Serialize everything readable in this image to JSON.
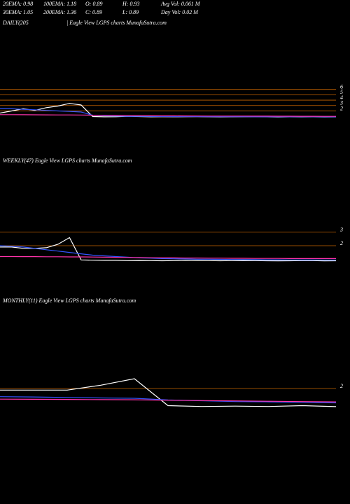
{
  "header": {
    "row1": [
      "20EMA: 0.98",
      "100EMA: 1.18",
      "O: 0.89",
      "H: 0.93",
      "Avg Vol: 0.061 M"
    ],
    "row2": [
      "30EMA: 1.05",
      "200EMA: 1.36",
      "C: 0.89",
      "L: 0.89",
      "Day Vol: 0.02 M"
    ]
  },
  "chart_data": [
    {
      "type": "line",
      "title": "DAILY(205",
      "subtitle": "| Eagle  View  LGPS charts MunafaSutra.com",
      "ylim": [
        0.5,
        7
      ],
      "yticks": [
        6,
        5,
        4,
        3,
        2
      ],
      "grid": true,
      "grid_color": "#c86400",
      "series": [
        {
          "color": "#ffffff",
          "values": [
            1.6,
            2.0,
            2.4,
            2.1,
            2.6,
            2.9,
            3.4,
            3.1,
            0.95,
            0.9,
            0.92,
            1.0,
            0.95,
            0.9,
            0.92,
            0.9,
            0.91,
            0.93,
            0.9,
            0.89,
            0.9,
            0.92,
            0.91,
            0.9,
            0.88,
            0.9,
            0.89,
            0.9,
            0.88,
            0.89
          ]
        },
        {
          "color": "#3355ff",
          "values": [
            2.4,
            2.4,
            2.3,
            2.2,
            2.1,
            2.0,
            1.9,
            1.8,
            1.2,
            1.1,
            1.05,
            1.0,
            1.0,
            0.98,
            0.97,
            0.96,
            0.95,
            0.95,
            0.94,
            0.94,
            0.93,
            0.93,
            0.92,
            0.92,
            0.92,
            0.91,
            0.91,
            0.91,
            0.9,
            0.9
          ]
        },
        {
          "color": "#ff33aa",
          "values": [
            1.3,
            1.3,
            1.29,
            1.28,
            1.27,
            1.26,
            1.25,
            1.24,
            1.2,
            1.17,
            1.15,
            1.13,
            1.12,
            1.1,
            1.09,
            1.08,
            1.07,
            1.06,
            1.05,
            1.05,
            1.04,
            1.04,
            1.03,
            1.03,
            1.02,
            1.02,
            1.01,
            1.01,
            1.0,
            1.0
          ]
        }
      ]
    },
    {
      "type": "line",
      "title": "WEEKLY(47) Eagle  View  LGPS charts MunafaSutra.com",
      "ylim": [
        0.5,
        3.6
      ],
      "yticks": [
        3,
        2
      ],
      "grid": true,
      "grid_color": "#c86400",
      "series": [
        {
          "color": "#ffffff",
          "values": [
            1.9,
            1.9,
            1.8,
            1.8,
            1.85,
            2.1,
            2.6,
            0.95,
            0.93,
            0.92,
            0.92,
            0.9,
            0.91,
            0.9,
            0.89,
            0.9,
            0.92,
            0.91,
            0.9,
            0.89,
            0.9,
            0.91,
            0.9,
            0.89,
            0.88,
            0.89,
            0.9,
            0.9,
            0.88,
            0.89
          ]
        },
        {
          "color": "#3355ff",
          "values": [
            2.0,
            1.95,
            1.9,
            1.8,
            1.7,
            1.6,
            1.5,
            1.4,
            1.3,
            1.25,
            1.2,
            1.15,
            1.1,
            1.08,
            1.05,
            1.03,
            1.02,
            1.0,
            1.0,
            0.99,
            0.98,
            0.97,
            0.97,
            0.96,
            0.96,
            0.95,
            0.95,
            0.95,
            0.94,
            0.94
          ]
        },
        {
          "color": "#ff33aa",
          "values": [
            1.2,
            1.2,
            1.19,
            1.19,
            1.18,
            1.18,
            1.17,
            1.17,
            1.16,
            1.15,
            1.14,
            1.13,
            1.12,
            1.11,
            1.1,
            1.1,
            1.09,
            1.09,
            1.08,
            1.08,
            1.07,
            1.07,
            1.06,
            1.06,
            1.06,
            1.05,
            1.05,
            1.05,
            1.05,
            1.05
          ]
        }
      ]
    },
    {
      "type": "line",
      "title": "MONTHLY(11) Eagle  View  LGPS charts MunafaSutra.com",
      "ylim": [
        0.5,
        3.5
      ],
      "yticks": [
        2
      ],
      "grid": true,
      "grid_color": "#c86400",
      "series": [
        {
          "color": "#ffffff",
          "values": [
            1.9,
            1.9,
            1.9,
            2.2,
            2.6,
            0.95,
            0.9,
            0.92,
            0.9,
            0.95,
            0.89
          ]
        },
        {
          "color": "#3355ff",
          "values": [
            1.5,
            1.48,
            1.45,
            1.42,
            1.4,
            1.3,
            1.25,
            1.2,
            1.18,
            1.15,
            1.12
          ]
        },
        {
          "color": "#ff33aa",
          "values": [
            1.35,
            1.34,
            1.33,
            1.32,
            1.31,
            1.28,
            1.26,
            1.24,
            1.22,
            1.2,
            1.18
          ]
        }
      ]
    }
  ]
}
